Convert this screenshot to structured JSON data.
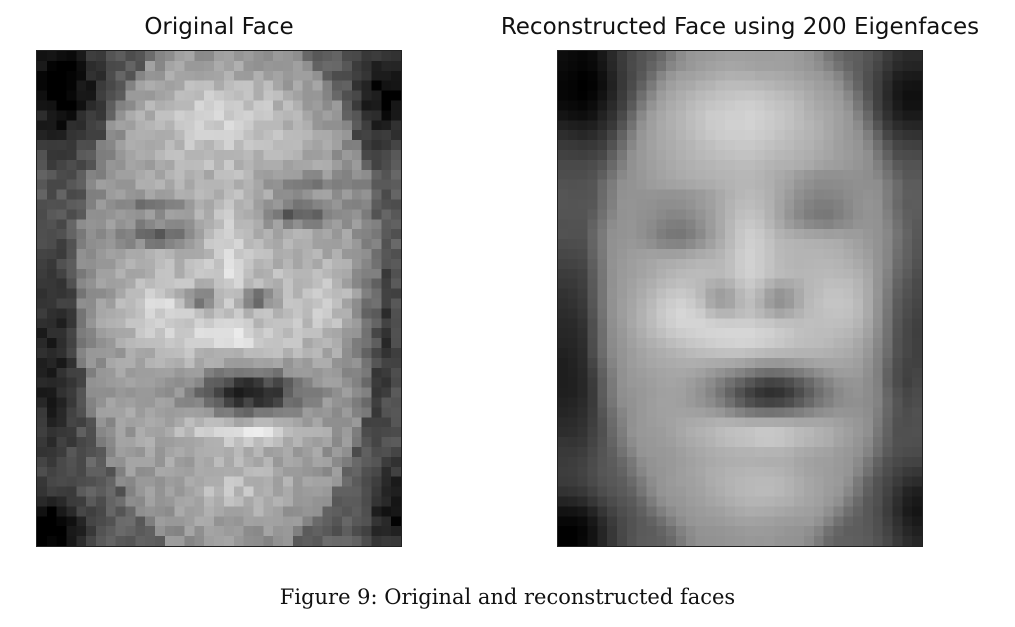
{
  "panels": {
    "original": {
      "title": "Original Face"
    },
    "reconstructed": {
      "title": "Reconstructed Face using 200 Eigenfaces"
    }
  },
  "figure": {
    "caption": "Figure 9: Original and reconstructed faces"
  }
}
